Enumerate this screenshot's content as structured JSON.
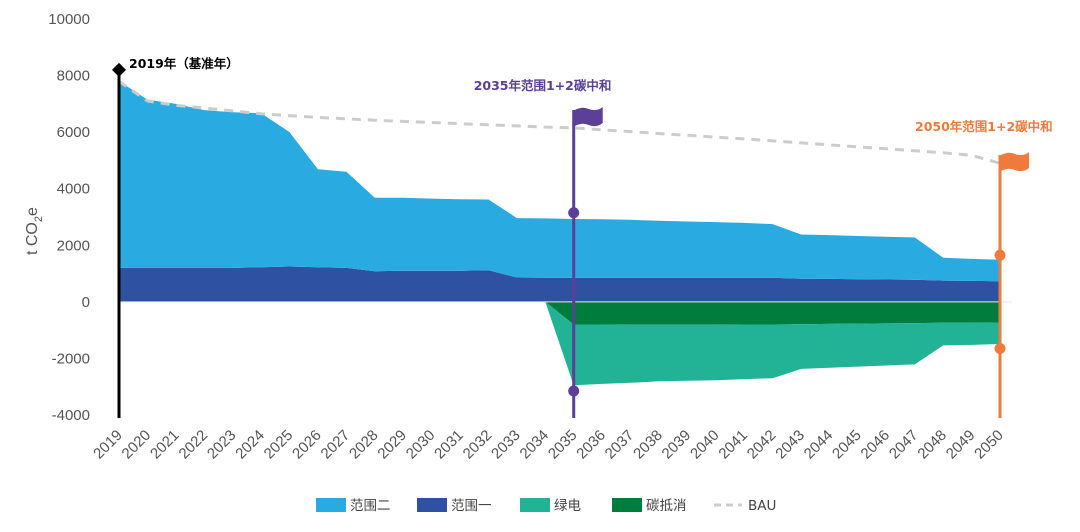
{
  "chart_data": {
    "type": "area",
    "ylabel": "t CO2e",
    "ylim": [
      -4000,
      10000
    ],
    "y_ticks": [
      10000,
      8000,
      6000,
      4000,
      2000,
      0,
      -2000,
      -4000
    ],
    "x": [
      "2019",
      "2020",
      "2021",
      "2022",
      "2023",
      "2024",
      "2025",
      "2026",
      "2027",
      "2028",
      "2029",
      "2030",
      "2031",
      "2032",
      "2033",
      "2034",
      "2035",
      "2036",
      "2037",
      "2038",
      "2039",
      "2040",
      "2041",
      "2042",
      "2043",
      "2044",
      "2045",
      "2046",
      "2047",
      "2048",
      "2049",
      "2050"
    ],
    "series": [
      {
        "name": "范围二",
        "color": "#29abe2",
        "values": [
          6600,
          5950,
          5800,
          5580,
          5500,
          5450,
          4750,
          3470,
          3400,
          2600,
          2580,
          2550,
          2530,
          2500,
          2100,
          2100,
          2080,
          2070,
          2050,
          2020,
          1990,
          1970,
          1940,
          1900,
          1560,
          1550,
          1530,
          1510,
          1500,
          810,
          780,
          760
        ]
      },
      {
        "name": "范围一",
        "color": "#2e51a2",
        "values": [
          1200,
          1200,
          1200,
          1200,
          1200,
          1220,
          1250,
          1220,
          1200,
          1080,
          1100,
          1100,
          1100,
          1120,
          860,
          850,
          850,
          850,
          850,
          850,
          850,
          850,
          850,
          850,
          820,
          810,
          800,
          790,
          780,
          750,
          740,
          730
        ]
      },
      {
        "name": "绿电",
        "color": "#22b296",
        "values": [
          0,
          0,
          0,
          0,
          0,
          0,
          0,
          0,
          0,
          0,
          0,
          0,
          0,
          0,
          0,
          0,
          -2150,
          -2100,
          -2050,
          -2000,
          -1980,
          -1960,
          -1930,
          -1900,
          -1580,
          -1550,
          -1520,
          -1490,
          -1460,
          -800,
          -780,
          -760
        ]
      },
      {
        "name": "碳抵消",
        "color": "#007d3c",
        "values": [
          0,
          0,
          0,
          0,
          0,
          0,
          0,
          0,
          0,
          0,
          0,
          0,
          0,
          0,
          0,
          0,
          -800,
          -800,
          -810,
          -810,
          -810,
          -810,
          -800,
          -800,
          -790,
          -780,
          -770,
          -760,
          -750,
          -740,
          -740,
          -730
        ]
      },
      {
        "name": "BAU",
        "color": "#cccccc",
        "style": "dashed",
        "values": [
          7800,
          7100,
          6950,
          6850,
          6750,
          6650,
          6580,
          6520,
          6470,
          6420,
          6380,
          6340,
          6300,
          6260,
          6220,
          6180,
          6150,
          6080,
          6020,
          5950,
          5890,
          5820,
          5760,
          5690,
          5620,
          5550,
          5480,
          5410,
          5340,
          5270,
          5180,
          4900
        ]
      }
    ],
    "annotations": [
      {
        "id": "base",
        "text": "2019年（基准年）",
        "x": "2019",
        "color": "#000000",
        "markers": [
          8200
        ]
      },
      {
        "id": "mid",
        "text": "2035年范围1+2碳中和",
        "x": "2035",
        "color": "#5b3f98",
        "markers": [
          3150,
          -3150
        ]
      },
      {
        "id": "end",
        "text": "2050年范围1+2碳中和",
        "x": "2050",
        "color": "#f07a3c",
        "markers": [
          1650,
          -1650
        ]
      }
    ],
    "legend": "bottom",
    "grid": false
  }
}
